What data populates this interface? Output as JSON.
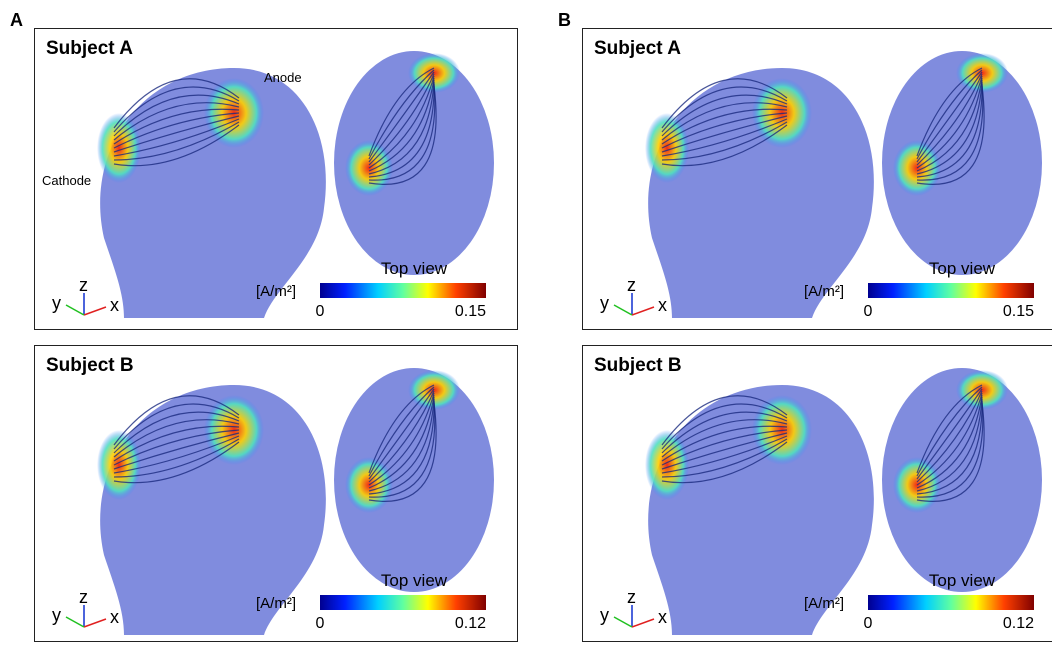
{
  "panels": [
    {
      "label": "A",
      "subfigures": [
        {
          "title": "Subject A",
          "view_label": "Top view",
          "unit": "[A/m²]",
          "colorbar": {
            "min": 0,
            "max": 0.15
          },
          "axes": {
            "y": "y",
            "z": "z",
            "x": "x"
          },
          "annotations": [
            "Anode",
            "Cathode"
          ]
        },
        {
          "title": "Subject B",
          "view_label": "Top view",
          "unit": "[A/m²]",
          "colorbar": {
            "min": 0,
            "max": 0.12
          },
          "axes": {
            "y": "y",
            "z": "z",
            "x": "x"
          }
        }
      ]
    },
    {
      "label": "B",
      "subfigures": [
        {
          "title": "Subject A",
          "view_label": "Top view",
          "unit": "[A/m²]",
          "colorbar": {
            "min": 0,
            "max": 0.15
          },
          "axes": {
            "y": "y",
            "z": "z",
            "x": "x"
          }
        },
        {
          "title": "Subject B",
          "view_label": "Top view",
          "unit": "[A/m²]",
          "colorbar": {
            "min": 0,
            "max": 0.12
          },
          "axes": {
            "y": "y",
            "z": "z",
            "x": "x"
          }
        }
      ]
    }
  ]
}
